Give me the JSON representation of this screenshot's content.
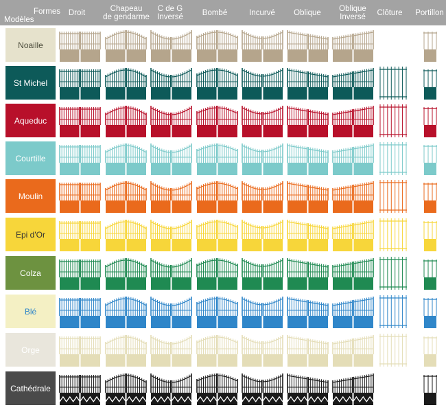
{
  "header": {
    "corner_top": "Formes",
    "corner_bottom": "Modèles",
    "columns": [
      {
        "label": "Droit",
        "label2": ""
      },
      {
        "label": "Chapeau",
        "label2": "de gendarme"
      },
      {
        "label": "C de G",
        "label2": "Inversé"
      },
      {
        "label": "Bombé",
        "label2": ""
      },
      {
        "label": "Incurvé",
        "label2": ""
      },
      {
        "label": "Oblique",
        "label2": ""
      },
      {
        "label": "Oblique",
        "label2": "Inversé"
      },
      {
        "label": "Clôture",
        "label2": ""
      },
      {
        "label": "Portillon",
        "label2": ""
      }
    ]
  },
  "rows": [
    {
      "label": "Noaille",
      "color": "#b5a58c",
      "label_color": "#ffffff",
      "swatch_bg": "#e6e2cc",
      "swatch_text": "#4a4a3a",
      "has_fence": false,
      "has_gate": true
    },
    {
      "label": "St Michel",
      "color": "#0d5a59",
      "swatch_bg": "#0d5a59",
      "swatch_text": "#ffffff",
      "has_fence": true,
      "has_gate": true
    },
    {
      "label": "Aqueduc",
      "color": "#b8102a",
      "swatch_bg": "#b8102a",
      "swatch_text": "#ffffff",
      "has_fence": true,
      "has_gate": true
    },
    {
      "label": "Courtille",
      "color": "#7ccaca",
      "swatch_bg": "#7ccaca",
      "swatch_text": "#ffffff",
      "has_fence": true,
      "has_gate": true
    },
    {
      "label": "Moulin",
      "color": "#ea6a1c",
      "swatch_bg": "#ea6a1c",
      "swatch_text": "#ffffff",
      "has_fence": true,
      "has_gate": true
    },
    {
      "label": "Epi d'Or",
      "color": "#f7d63a",
      "swatch_bg": "#f7d63a",
      "swatch_text": "#333333",
      "has_fence": true,
      "has_gate": true
    },
    {
      "label": "Colza",
      "color": "#1f8a52",
      "swatch_bg": "#6d9240",
      "swatch_text": "#ffffff",
      "has_fence": true,
      "has_gate": true
    },
    {
      "label": "Blé",
      "color": "#2f86c9",
      "swatch_bg": "#f4f0c4",
      "swatch_text": "#2f86c9",
      "has_fence": true,
      "has_gate": true
    },
    {
      "label": "Orge",
      "color": "#e4ddb7",
      "swatch_bg": "#e9e6dc",
      "swatch_text": "#ffffff",
      "has_fence": true,
      "has_gate": true
    },
    {
      "label": "Cathédrale",
      "color": "#1a1a1a",
      "swatch_bg": "#4a4a4a",
      "swatch_text": "#ffffff",
      "has_fence": false,
      "has_gate": true
    }
  ]
}
